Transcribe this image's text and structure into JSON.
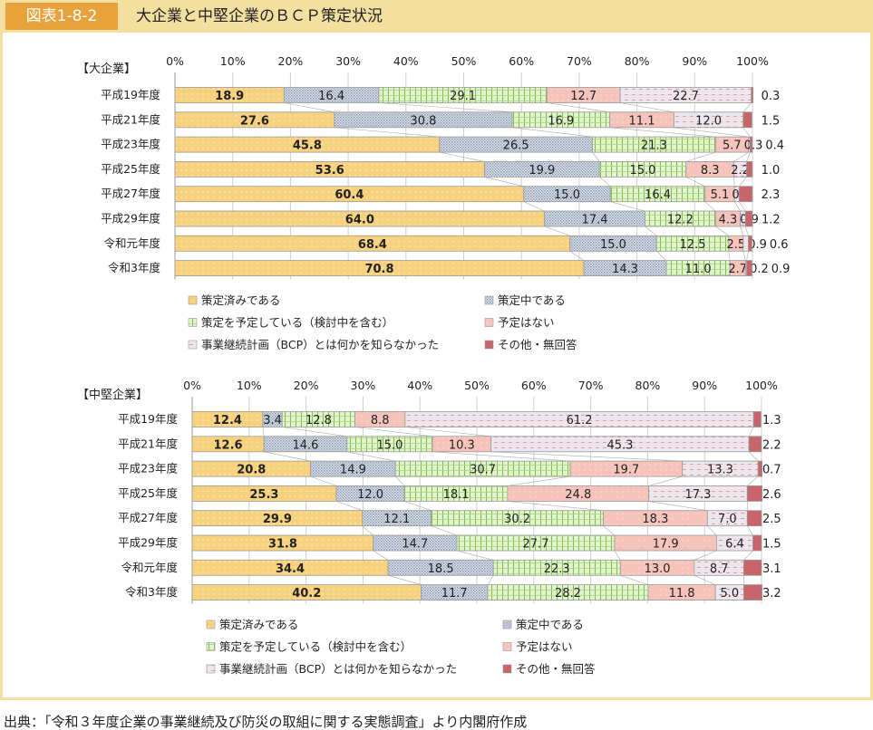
{
  "header": {
    "figure_no": "図表1-8-2",
    "title": "大企業と中堅企業のＢＣＰ策定状況"
  },
  "source": "出典：「令和３年度企業の事業継続及び防災の取組に関する実態調査」より内閣府作成",
  "colors": {
    "s0": "#f7d17e",
    "s1": "#b5c0d0",
    "s2": "#cbe6a8",
    "s3": "#f6c3bb",
    "s4": "#ece6ef",
    "s5": "#c7656a"
  },
  "chart_data": [
    {
      "type": "bar",
      "stacked": true,
      "horizontal": true,
      "title": "【大企業】",
      "xlim": [
        0,
        100
      ],
      "ticks": [
        "0%",
        "10%",
        "20%",
        "30%",
        "40%",
        "50%",
        "60%",
        "70%",
        "80%",
        "90%",
        "100%"
      ],
      "categories": [
        "平成19年度",
        "平成21年度",
        "平成23年度",
        "平成25年度",
        "平成27年度",
        "平成29年度",
        "令和元年度",
        "令和3年度"
      ],
      "series": [
        {
          "name": "策定済みである",
          "values": [
            18.9,
            27.6,
            45.8,
            53.6,
            60.4,
            64.0,
            68.4,
            70.8
          ]
        },
        {
          "name": "策定中である",
          "values": [
            16.4,
            30.8,
            26.5,
            19.9,
            15.0,
            17.4,
            15.0,
            14.3
          ]
        },
        {
          "name": "策定を予定している（検討中を含む）",
          "values": [
            29.1,
            16.9,
            21.3,
            15.0,
            16.4,
            12.2,
            12.5,
            11.0
          ]
        },
        {
          "name": "予定はない",
          "values": [
            12.7,
            11.1,
            5.7,
            8.3,
            5.1,
            4.3,
            2.5,
            2.7
          ]
        },
        {
          "name": "事業継続計画（BCP）とは何かを知らなかった",
          "values": [
            22.7,
            12.0,
            0.3,
            2.2,
            0.8,
            0.9,
            0.9,
            0.2
          ]
        },
        {
          "name": "その他・無回答",
          "values": [
            0.3,
            1.5,
            0.4,
            1.0,
            2.3,
            1.2,
            0.6,
            0.9
          ]
        }
      ]
    },
    {
      "type": "bar",
      "stacked": true,
      "horizontal": true,
      "title": "【中堅企業】",
      "xlim": [
        0,
        100
      ],
      "ticks": [
        "0%",
        "10%",
        "20%",
        "30%",
        "40%",
        "50%",
        "60%",
        "70%",
        "80%",
        "90%",
        "100%"
      ],
      "categories": [
        "平成19年度",
        "平成21年度",
        "平成23年度",
        "平成25年度",
        "平成27年度",
        "平成29年度",
        "令和元年度",
        "令和3年度"
      ],
      "series": [
        {
          "name": "策定済みである",
          "values": [
            12.4,
            12.6,
            20.8,
            25.3,
            29.9,
            31.8,
            34.4,
            40.2
          ]
        },
        {
          "name": "策定中である",
          "values": [
            3.4,
            14.6,
            14.9,
            12.0,
            12.1,
            14.7,
            18.5,
            11.7
          ]
        },
        {
          "name": "策定を予定している（検討中を含む）",
          "values": [
            12.8,
            15.0,
            30.7,
            18.1,
            30.2,
            27.7,
            22.3,
            28.2
          ]
        },
        {
          "name": "予定はない",
          "values": [
            8.8,
            10.3,
            19.7,
            24.8,
            18.3,
            17.9,
            13.0,
            11.8
          ]
        },
        {
          "name": "事業継続計画（BCP）とは何かを知らなかった",
          "values": [
            61.2,
            45.3,
            13.3,
            17.3,
            7.0,
            6.4,
            8.7,
            5.0
          ]
        },
        {
          "name": "その他・無回答",
          "values": [
            1.3,
            2.2,
            0.7,
            2.6,
            2.5,
            1.5,
            3.1,
            3.2
          ]
        }
      ]
    }
  ]
}
